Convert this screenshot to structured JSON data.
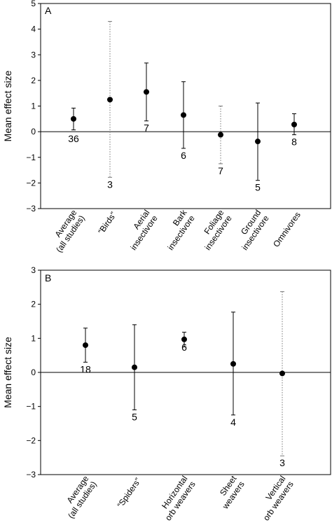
{
  "chart_data": [
    {
      "panel": "A",
      "type": "scatter",
      "ylabel": "Mean effect size",
      "ylim": [
        -3,
        5
      ],
      "yticks": [
        -3,
        -2,
        -1,
        0,
        1,
        2,
        3,
        4,
        5
      ],
      "categories": [
        [
          "Average",
          "(all studies)"
        ],
        [
          "“Birds”"
        ],
        [
          "Aerial",
          "insectivore"
        ],
        [
          "Bark",
          "insectivore"
        ],
        [
          "Foliage",
          "insectivore"
        ],
        [
          "Ground",
          "insectivore"
        ],
        [
          "Omnivores"
        ]
      ],
      "points": [
        {
          "mean": 0.5,
          "ci_low": 0.07,
          "ci_high": 0.92,
          "n": "36",
          "dotted": false,
          "n_above": false
        },
        {
          "mean": 1.25,
          "ci_low": -1.78,
          "ci_high": 4.3,
          "n": "3",
          "dotted": true,
          "n_above": false
        },
        {
          "mean": 1.55,
          "ci_low": 0.42,
          "ci_high": 2.68,
          "n": "7",
          "dotted": false,
          "n_above": false
        },
        {
          "mean": 0.65,
          "ci_low": -0.65,
          "ci_high": 1.95,
          "n": "6",
          "dotted": false,
          "n_above": false
        },
        {
          "mean": -0.12,
          "ci_low": -1.25,
          "ci_high": 1.0,
          "n": "7",
          "dotted": true,
          "n_above": false
        },
        {
          "mean": -0.38,
          "ci_low": -1.9,
          "ci_high": 1.12,
          "n": "5",
          "dotted": false,
          "n_above": false
        },
        {
          "mean": 0.28,
          "ci_low": -0.12,
          "ci_high": 0.7,
          "n": "8",
          "dotted": false,
          "n_above": false
        }
      ]
    },
    {
      "panel": "B",
      "type": "scatter",
      "ylabel": "Mean effect size",
      "ylim": [
        -3,
        3
      ],
      "yticks": [
        -3,
        -2,
        -1,
        0,
        1,
        2,
        3
      ],
      "categories": [
        [
          "Average",
          "(all studies)"
        ],
        [
          "“Spiders”"
        ],
        [
          "Horizontal",
          "orb weavers"
        ],
        [
          "Sheet",
          "weavers"
        ],
        [
          "Vertical",
          "orb weavers"
        ]
      ],
      "points": [
        {
          "mean": 0.8,
          "ci_low": 0.3,
          "ci_high": 1.3,
          "n": "18",
          "dotted": false,
          "n_above": false
        },
        {
          "mean": 0.15,
          "ci_low": -1.1,
          "ci_high": 1.4,
          "n": "5",
          "dotted": false,
          "n_above": false
        },
        {
          "mean": 0.97,
          "ci_low": 0.75,
          "ci_high": 1.18,
          "n": "6",
          "dotted": false,
          "n_above": true
        },
        {
          "mean": 0.25,
          "ci_low": -1.25,
          "ci_high": 1.77,
          "n": "4",
          "dotted": false,
          "n_above": false
        },
        {
          "mean": -0.03,
          "ci_low": -2.45,
          "ci_high": 2.37,
          "n": "3",
          "dotted": true,
          "n_above": false
        }
      ]
    }
  ]
}
